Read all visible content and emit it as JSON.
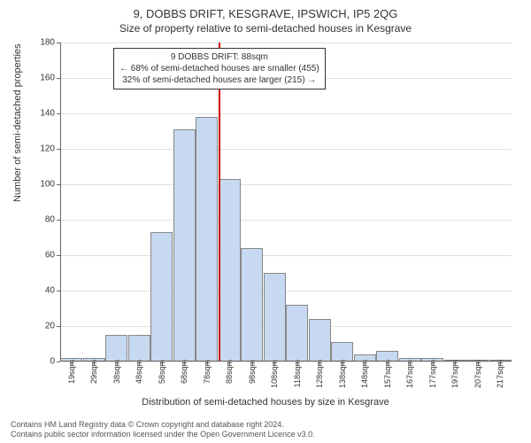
{
  "title": "9, DOBBS DRIFT, KESGRAVE, IPSWICH, IP5 2QG",
  "subtitle": "Size of property relative to semi-detached houses in Kesgrave",
  "chart": {
    "type": "histogram",
    "background_color": "#ffffff",
    "grid_color": "#cccccc",
    "axis_color": "#666666",
    "bar_fill": "#c6d9f0",
    "bar_border": "#888888",
    "refline_color": "#cc0000",
    "ylim": [
      0,
      180
    ],
    "ytick_step": 20,
    "ylabel": "Number of semi-detached properties",
    "xlabel": "Distribution of semi-detached houses by size in Kesgrave",
    "title_fontsize": 13,
    "subtitle_fontsize": 12,
    "label_fontsize": 11,
    "tick_fontsize": 10,
    "xtick_labels": [
      "19sqm",
      "29sqm",
      "38sqm",
      "48sqm",
      "58sqm",
      "68sqm",
      "78sqm",
      "88sqm",
      "98sqm",
      "108sqm",
      "118sqm",
      "128sqm",
      "138sqm",
      "148sqm",
      "157sqm",
      "167sqm",
      "177sqm",
      "197sqm",
      "207sqm",
      "217sqm"
    ],
    "bars": [
      {
        "x": 19,
        "count": 2
      },
      {
        "x": 29,
        "count": 2
      },
      {
        "x": 38,
        "count": 15
      },
      {
        "x": 48,
        "count": 15
      },
      {
        "x": 58,
        "count": 73
      },
      {
        "x": 68,
        "count": 131
      },
      {
        "x": 78,
        "count": 138
      },
      {
        "x": 88,
        "count": 103
      },
      {
        "x": 98,
        "count": 64
      },
      {
        "x": 108,
        "count": 50
      },
      {
        "x": 118,
        "count": 32
      },
      {
        "x": 128,
        "count": 24
      },
      {
        "x": 138,
        "count": 11
      },
      {
        "x": 148,
        "count": 4
      },
      {
        "x": 157,
        "count": 6
      },
      {
        "x": 167,
        "count": 2
      },
      {
        "x": 177,
        "count": 2
      },
      {
        "x": 197,
        "count": 1
      },
      {
        "x": 207,
        "count": 1
      },
      {
        "x": 217,
        "count": 1
      }
    ],
    "refline_index": 7,
    "callout": {
      "line1": "9 DOBBS DRIFT: 88sqm",
      "line2": "← 68% of semi-detached houses are smaller (455)",
      "line3": "32% of semi-detached houses are larger (215) →"
    }
  },
  "footer": {
    "line1": "Contains HM Land Registry data © Crown copyright and database right 2024.",
    "line2": "Contains public sector information licensed under the Open Government Licence v3.0."
  }
}
